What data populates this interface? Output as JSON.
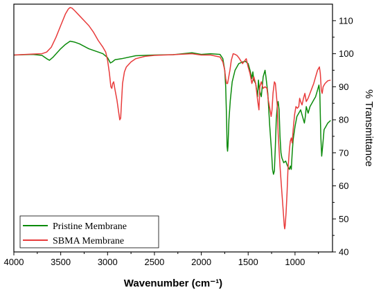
{
  "chart_data": {
    "type": "line",
    "title": "",
    "xlabel": "Wavenumber (cm⁻¹)",
    "ylabel": "% Transmittance",
    "xlim": [
      4000,
      600
    ],
    "ylim": [
      40,
      115
    ],
    "x_reversed": true,
    "y_axis_side": "right",
    "x_ticks": [
      "4000",
      "3500",
      "3000",
      "2500",
      "2000",
      "1500",
      "1000"
    ],
    "x_tick_values": [
      4000,
      3500,
      3000,
      2500,
      2000,
      1500,
      1000
    ],
    "y_ticks": [
      "40",
      "50",
      "60",
      "70",
      "80",
      "90",
      "100",
      "110"
    ],
    "y_tick_values": [
      40,
      50,
      60,
      70,
      80,
      90,
      100,
      110
    ],
    "grid": false,
    "legend_position": "bottom-left",
    "series": [
      {
        "name": "Pristine Membrane",
        "color": "#0a8a0a",
        "points": [
          [
            4000,
            99.6
          ],
          [
            3800,
            99.8
          ],
          [
            3700,
            99.5
          ],
          [
            3650,
            98.5
          ],
          [
            3620,
            98.0
          ],
          [
            3580,
            99.0
          ],
          [
            3500,
            101.5
          ],
          [
            3450,
            102.8
          ],
          [
            3400,
            103.8
          ],
          [
            3350,
            103.5
          ],
          [
            3300,
            103.0
          ],
          [
            3200,
            101.5
          ],
          [
            3100,
            100.5
          ],
          [
            3050,
            100.0
          ],
          [
            3000,
            98.8
          ],
          [
            2970,
            97.2
          ],
          [
            2950,
            97.5
          ],
          [
            2920,
            98.2
          ],
          [
            2850,
            98.5
          ],
          [
            2700,
            99.4
          ],
          [
            2500,
            99.6
          ],
          [
            2300,
            99.7
          ],
          [
            2100,
            100.3
          ],
          [
            2000,
            99.8
          ],
          [
            1900,
            100.0
          ],
          [
            1800,
            99.8
          ],
          [
            1770,
            98.5
          ],
          [
            1750,
            95.0
          ],
          [
            1740,
            90.0
          ],
          [
            1730,
            80.0
          ],
          [
            1725,
            72.0
          ],
          [
            1720,
            70.5
          ],
          [
            1715,
            72.0
          ],
          [
            1705,
            80.0
          ],
          [
            1690,
            86.0
          ],
          [
            1670,
            91.5
          ],
          [
            1640,
            95.0
          ],
          [
            1600,
            97.0
          ],
          [
            1560,
            97.5
          ],
          [
            1530,
            97.7
          ],
          [
            1500,
            97.0
          ],
          [
            1480,
            95.0
          ],
          [
            1460,
            92.5
          ],
          [
            1450,
            94.5
          ],
          [
            1440,
            92.0
          ],
          [
            1420,
            91.0
          ],
          [
            1400,
            87.0
          ],
          [
            1390,
            92.0
          ],
          [
            1380,
            89.0
          ],
          [
            1360,
            87.0
          ],
          [
            1340,
            93.0
          ],
          [
            1320,
            95.0
          ],
          [
            1310,
            93.0
          ],
          [
            1290,
            88.0
          ],
          [
            1270,
            78.0
          ],
          [
            1250,
            70.0
          ],
          [
            1240,
            65.0
          ],
          [
            1230,
            63.5
          ],
          [
            1220,
            64.5
          ],
          [
            1210,
            72.0
          ],
          [
            1200,
            80.0
          ],
          [
            1190,
            84.0
          ],
          [
            1180,
            85.5
          ],
          [
            1170,
            83.0
          ],
          [
            1160,
            75.0
          ],
          [
            1150,
            70.0
          ],
          [
            1140,
            68.5
          ],
          [
            1120,
            67.0
          ],
          [
            1100,
            67.5
          ],
          [
            1080,
            66.0
          ],
          [
            1060,
            65.0
          ],
          [
            1050,
            66.0
          ],
          [
            1040,
            65.0
          ],
          [
            1030,
            70.0
          ],
          [
            1020,
            74.0
          ],
          [
            1000,
            78.0
          ],
          [
            980,
            81.0
          ],
          [
            960,
            82.0
          ],
          [
            940,
            83.0
          ],
          [
            920,
            81.0
          ],
          [
            900,
            79.0
          ],
          [
            890,
            81.0
          ],
          [
            880,
            84.0
          ],
          [
            860,
            82.0
          ],
          [
            840,
            84.0
          ],
          [
            820,
            85.0
          ],
          [
            800,
            86.0
          ],
          [
            780,
            87.0
          ],
          [
            760,
            89.0
          ],
          [
            745,
            90.5
          ],
          [
            735,
            88.0
          ],
          [
            725,
            75.0
          ],
          [
            715,
            69.0
          ],
          [
            705,
            72.0
          ],
          [
            690,
            77.0
          ],
          [
            670,
            78.0
          ],
          [
            650,
            79.0
          ],
          [
            620,
            79.8
          ]
        ]
      },
      {
        "name": "SBMA Membrane",
        "color": "#e83a3a",
        "points": [
          [
            4000,
            99.6
          ],
          [
            3800,
            99.9
          ],
          [
            3700,
            100.0
          ],
          [
            3650,
            100.5
          ],
          [
            3600,
            102.0
          ],
          [
            3550,
            105.0
          ],
          [
            3500,
            108.5
          ],
          [
            3450,
            112.0
          ],
          [
            3420,
            113.5
          ],
          [
            3400,
            114.0
          ],
          [
            3380,
            113.8
          ],
          [
            3350,
            113.0
          ],
          [
            3300,
            111.5
          ],
          [
            3250,
            110.0
          ],
          [
            3200,
            108.5
          ],
          [
            3150,
            106.5
          ],
          [
            3100,
            104.0
          ],
          [
            3050,
            102.0
          ],
          [
            3020,
            100.5
          ],
          [
            3000,
            98.0
          ],
          [
            2980,
            94.0
          ],
          [
            2965,
            90.0
          ],
          [
            2955,
            89.5
          ],
          [
            2945,
            91.0
          ],
          [
            2935,
            91.5
          ],
          [
            2920,
            89.0
          ],
          [
            2900,
            86.0
          ],
          [
            2880,
            82.0
          ],
          [
            2870,
            80.0
          ],
          [
            2860,
            80.5
          ],
          [
            2850,
            86.0
          ],
          [
            2840,
            91.0
          ],
          [
            2820,
            94.5
          ],
          [
            2800,
            96.0
          ],
          [
            2750,
            97.5
          ],
          [
            2700,
            98.5
          ],
          [
            2600,
            99.2
          ],
          [
            2500,
            99.5
          ],
          [
            2300,
            99.7
          ],
          [
            2100,
            100.0
          ],
          [
            2000,
            99.6
          ],
          [
            1900,
            99.6
          ],
          [
            1800,
            99.0
          ],
          [
            1770,
            97.5
          ],
          [
            1750,
            95.0
          ],
          [
            1740,
            92.5
          ],
          [
            1730,
            91.0
          ],
          [
            1720,
            91.0
          ],
          [
            1710,
            92.5
          ],
          [
            1695,
            95.0
          ],
          [
            1680,
            98.0
          ],
          [
            1660,
            100.0
          ],
          [
            1640,
            99.8
          ],
          [
            1620,
            99.5
          ],
          [
            1600,
            98.8
          ],
          [
            1560,
            97.0
          ],
          [
            1520,
            98.5
          ],
          [
            1500,
            96.0
          ],
          [
            1480,
            94.0
          ],
          [
            1460,
            91.0
          ],
          [
            1440,
            93.0
          ],
          [
            1420,
            91.0
          ],
          [
            1400,
            86.0
          ],
          [
            1385,
            83.0
          ],
          [
            1375,
            90.0
          ],
          [
            1360,
            91.5
          ],
          [
            1340,
            89.5
          ],
          [
            1320,
            90.0
          ],
          [
            1300,
            89.5
          ],
          [
            1285,
            86.0
          ],
          [
            1270,
            83.5
          ],
          [
            1255,
            81.0
          ],
          [
            1245,
            83.0
          ],
          [
            1235,
            88.0
          ],
          [
            1220,
            91.5
          ],
          [
            1210,
            91.0
          ],
          [
            1200,
            88.0
          ],
          [
            1190,
            84.5
          ],
          [
            1180,
            76.0
          ],
          [
            1160,
            66.0
          ],
          [
            1140,
            58.0
          ],
          [
            1125,
            52.0
          ],
          [
            1115,
            48.0
          ],
          [
            1110,
            47.0
          ],
          [
            1105,
            48.0
          ],
          [
            1095,
            52.0
          ],
          [
            1085,
            58.0
          ],
          [
            1075,
            65.0
          ],
          [
            1060,
            71.0
          ],
          [
            1050,
            73.5
          ],
          [
            1040,
            74.5
          ],
          [
            1030,
            73.0
          ],
          [
            1020,
            77.0
          ],
          [
            1005,
            81.5
          ],
          [
            990,
            84.0
          ],
          [
            975,
            83.5
          ],
          [
            960,
            84.0
          ],
          [
            950,
            86.5
          ],
          [
            940,
            85.5
          ],
          [
            925,
            84.5
          ],
          [
            910,
            86.5
          ],
          [
            895,
            88.0
          ],
          [
            880,
            85.5
          ],
          [
            860,
            86.5
          ],
          [
            840,
            88.0
          ],
          [
            820,
            89.5
          ],
          [
            800,
            91.0
          ],
          [
            780,
            93.0
          ],
          [
            760,
            95.0
          ],
          [
            740,
            96.0
          ],
          [
            730,
            94.0
          ],
          [
            720,
            89.0
          ],
          [
            710,
            88.0
          ],
          [
            700,
            90.0
          ],
          [
            680,
            91.0
          ],
          [
            650,
            91.8
          ],
          [
            620,
            92.0
          ]
        ]
      }
    ]
  }
}
